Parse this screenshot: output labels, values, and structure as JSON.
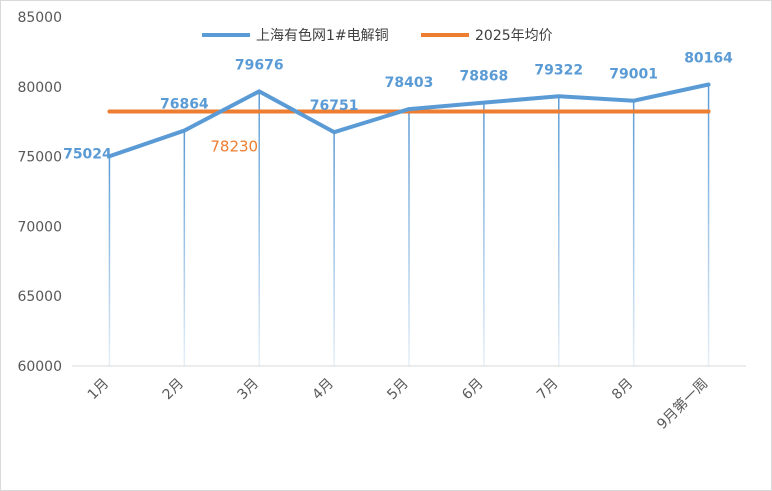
{
  "chart_data": {
    "type": "line",
    "title": "",
    "xlabel": "",
    "ylabel": "",
    "categories": [
      "1月",
      "2月",
      "3月",
      "4月",
      "5月",
      "6月",
      "7月",
      "8月",
      "9月第一周"
    ],
    "ylim": [
      60000,
      85000
    ],
    "yticks": [
      60000,
      65000,
      70000,
      75000,
      80000,
      85000
    ],
    "grid": false,
    "legend_position": "top",
    "series": [
      {
        "name": "上海有色网1#电解铜",
        "color": "#5b9bd5",
        "values": [
          75024,
          76864,
          79676,
          76751,
          78403,
          78868,
          79322,
          79001,
          80164
        ],
        "labels": [
          "75024",
          "76864",
          "79676",
          "76751",
          "78403",
          "78868",
          "79322",
          "79001",
          "80164"
        ]
      },
      {
        "name": "2025年均价",
        "color": "#ed7d31",
        "values": [
          78230,
          78230,
          78230,
          78230,
          78230,
          78230,
          78230,
          78230,
          78230
        ],
        "label": "78230"
      }
    ]
  }
}
